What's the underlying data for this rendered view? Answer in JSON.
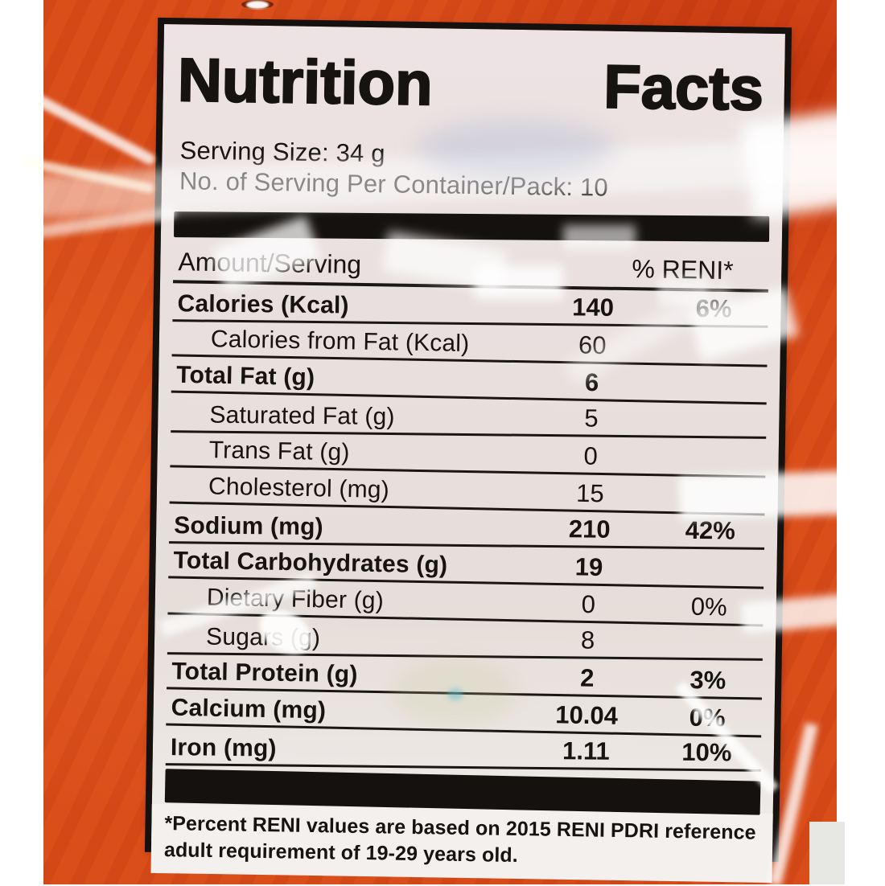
{
  "label": {
    "title_parts": [
      "Nutrition",
      "Facts"
    ],
    "serving_size_line": "Serving Size: 34 g",
    "servings_line": "No. of Serving Per Container/Pack: 10",
    "columns": {
      "amount_header": "Amount/Serving",
      "percent_header": "% RENI*"
    },
    "rows": [
      {
        "name": "Calories (Kcal)",
        "amount": "140",
        "percent": "6%",
        "bold": true,
        "indent": false
      },
      {
        "name": "Calories from Fat (Kcal)",
        "amount": "60",
        "percent": "",
        "bold": false,
        "indent": true
      },
      {
        "name": "Total Fat (g)",
        "amount": "6",
        "percent": "",
        "bold": true,
        "indent": false
      },
      {
        "name": "Saturated Fat (g)",
        "amount": "5",
        "percent": "",
        "bold": false,
        "indent": true
      },
      {
        "name": "Trans Fat (g)",
        "amount": "0",
        "percent": "",
        "bold": false,
        "indent": true
      },
      {
        "name": "Cholesterol (mg)",
        "amount": "15",
        "percent": "",
        "bold": false,
        "indent": true
      },
      {
        "name": "Sodium (mg)",
        "amount": "210",
        "percent": "42%",
        "bold": true,
        "indent": false
      },
      {
        "name": "Total Carbohydrates (g)",
        "amount": "19",
        "percent": "",
        "bold": true,
        "indent": false
      },
      {
        "name": "Dietary Fiber (g)",
        "amount": "0",
        "percent": "0%",
        "bold": false,
        "indent": true
      },
      {
        "name": "Sugars (g)",
        "amount": "8",
        "percent": "",
        "bold": false,
        "indent": true
      },
      {
        "name": "Total Protein (g)",
        "amount": "2",
        "percent": "3%",
        "bold": true,
        "indent": false
      },
      {
        "name": "Calcium (mg)",
        "amount": "10.04",
        "percent": "0%",
        "bold": true,
        "indent": false
      },
      {
        "name": "Iron (mg)",
        "amount": "1.11",
        "percent": "10%",
        "bold": true,
        "indent": false
      }
    ],
    "footnote_line1": "*Percent RENI values are based on 2015 RENI PDRI reference",
    "footnote_line2": "adult requirement of 19-29 years old."
  },
  "colors": {
    "package_orange": "#d84a18",
    "label_background": "#e8e0de",
    "ink": "#171310"
  }
}
